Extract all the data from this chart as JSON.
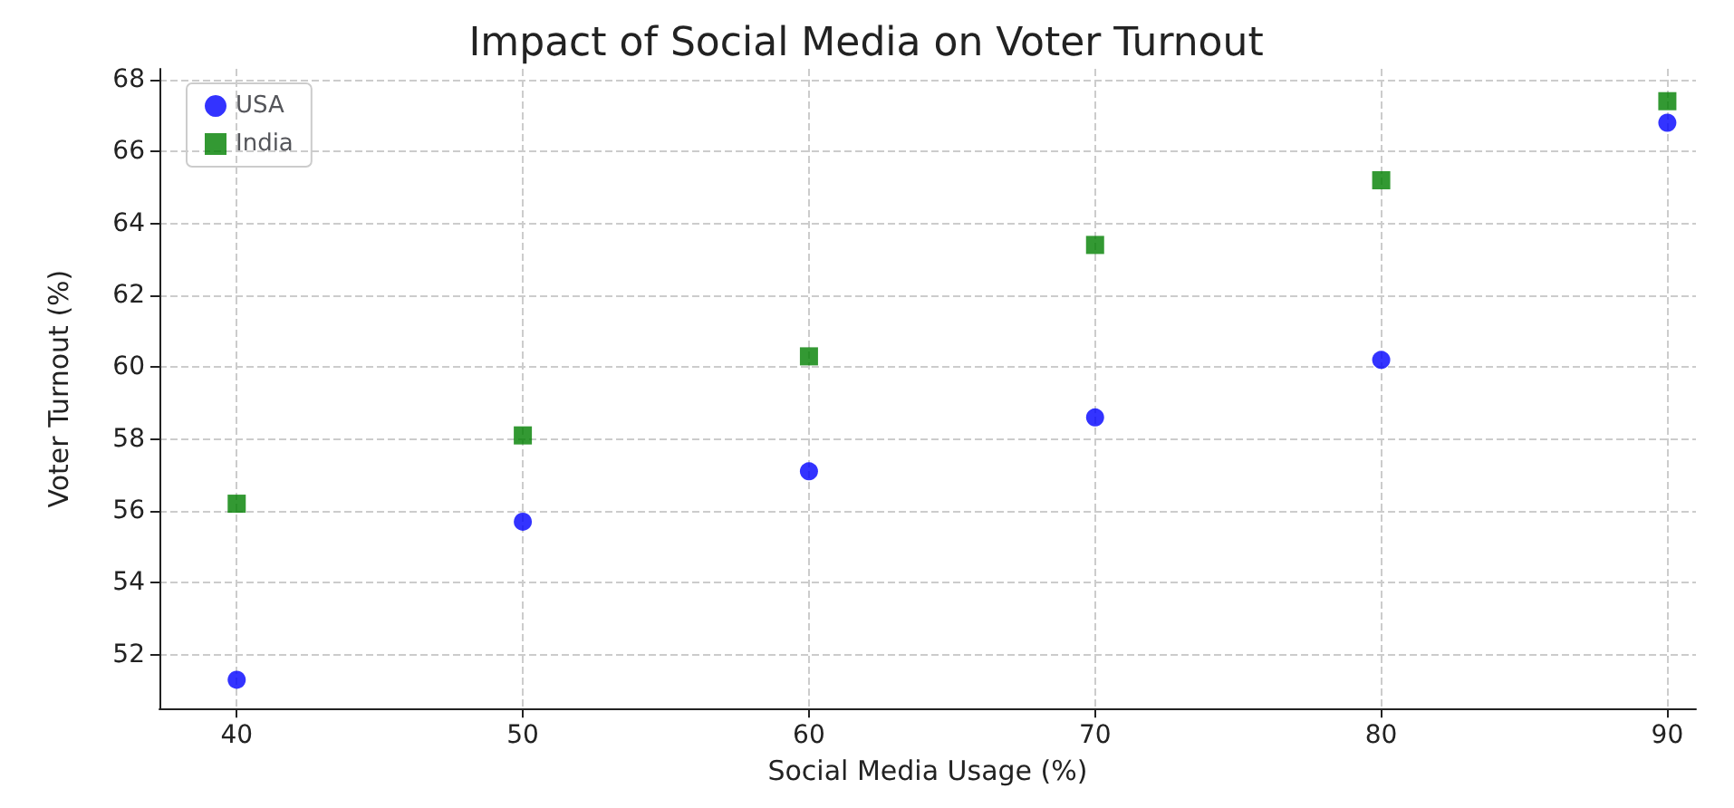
{
  "chart_data": {
    "type": "scatter",
    "title": "Impact of Social Media on Voter Turnout",
    "xlabel": "Social Media Usage (%)",
    "ylabel": "Voter Turnout (%)",
    "x": [
      40,
      50,
      60,
      70,
      80,
      90
    ],
    "series": [
      {
        "name": "USA",
        "color": "#0000ff",
        "marker": "circle",
        "values": [
          51.3,
          55.7,
          57.1,
          58.6,
          60.2,
          66.8
        ]
      },
      {
        "name": "India",
        "color": "#008000",
        "marker": "square",
        "values": [
          56.2,
          58.1,
          60.3,
          63.4,
          65.2,
          67.4
        ]
      }
    ],
    "xlim": [
      37.3,
      91
    ],
    "xticks": [
      40,
      50,
      60,
      70,
      80,
      90
    ],
    "ylim": [
      50.5,
      68.3
    ],
    "yticks": [
      52,
      54,
      56,
      58,
      60,
      62,
      64,
      66,
      68
    ],
    "grid": true,
    "legend": "top left"
  }
}
